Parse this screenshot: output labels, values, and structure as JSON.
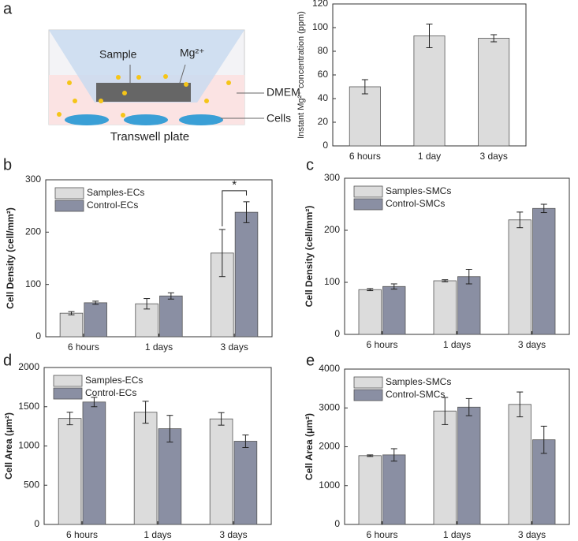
{
  "schematic": {
    "panel_label": "a",
    "sample": "Sample",
    "ion": "Mg²⁺",
    "medium": "DMEM",
    "cells": "Cells",
    "caption": "Transwell plate"
  },
  "chart_data": [
    {
      "type": "bar",
      "y_label": "Instant Mg²⁺ concentration (ppm)",
      "categories": [
        "6 hours",
        "1 day",
        "3 days"
      ],
      "series": [
        {
          "name": null,
          "color": "#dcdcdc",
          "values": [
            50,
            93,
            91
          ],
          "errors": [
            6,
            10,
            3
          ]
        }
      ],
      "ylim": [
        0,
        120
      ],
      "yticks": [
        0,
        20,
        40,
        60,
        80,
        100,
        120
      ]
    },
    {
      "type": "bar",
      "panel_label": "b",
      "y_label": "Cell Density (cell/mm²)",
      "categories": [
        "6 hours",
        "1 days",
        "3 days"
      ],
      "series": [
        {
          "name": "Samples-ECs",
          "color": "#dcdcdc",
          "values": [
            45,
            63,
            160
          ],
          "errors": [
            3,
            10,
            45
          ]
        },
        {
          "name": "Control-ECs",
          "color": "#8a8fa3",
          "values": [
            65,
            78,
            238
          ],
          "errors": [
            3,
            6,
            20
          ]
        }
      ],
      "ylim": [
        0,
        300
      ],
      "yticks": [
        0,
        100,
        200,
        300
      ],
      "legend": "upper left",
      "annotations": [
        {
          "text": "*",
          "category": 2
        }
      ]
    },
    {
      "type": "bar",
      "panel_label": "c",
      "y_label": "Cell Density (cell/mm²)",
      "categories": [
        "6 hours",
        "1 days",
        "3 days"
      ],
      "series": [
        {
          "name": "Samples-SMCs",
          "color": "#dcdcdc",
          "values": [
            86,
            103,
            220
          ],
          "errors": [
            2,
            2,
            15
          ]
        },
        {
          "name": "Control-SMCs",
          "color": "#8a8fa3",
          "values": [
            92,
            111,
            242
          ],
          "errors": [
            5,
            14,
            8
          ]
        }
      ],
      "ylim": [
        0,
        300
      ],
      "yticks": [
        0,
        100,
        200,
        300
      ],
      "legend": "upper left"
    },
    {
      "type": "bar",
      "panel_label": "d",
      "y_label": "Cell Area (μm²)",
      "categories": [
        "6 hours",
        "1 days",
        "3 days"
      ],
      "series": [
        {
          "name": "Samples-ECs",
          "color": "#dcdcdc",
          "values": [
            1350,
            1430,
            1345
          ],
          "errors": [
            80,
            140,
            80
          ]
        },
        {
          "name": "Control-ECs",
          "color": "#8a8fa3",
          "values": [
            1560,
            1220,
            1060
          ],
          "errors": [
            60,
            170,
            80
          ]
        }
      ],
      "ylim": [
        0,
        2000
      ],
      "yticks": [
        0,
        500,
        1000,
        1500,
        2000
      ],
      "legend": "upper left"
    },
    {
      "type": "bar",
      "panel_label": "e",
      "y_label": "Cell Area (μm²)",
      "categories": [
        "6 hours",
        "1 days",
        "3 days"
      ],
      "series": [
        {
          "name": "Samples-SMCs",
          "color": "#dcdcdc",
          "values": [
            1770,
            2920,
            3090
          ],
          "errors": [
            20,
            350,
            320
          ]
        },
        {
          "name": "Control-SMCs",
          "color": "#8a8fa3",
          "values": [
            1790,
            3020,
            2180
          ],
          "errors": [
            160,
            220,
            350
          ]
        }
      ],
      "ylim": [
        0,
        4000
      ],
      "yticks": [
        0,
        1000,
        2000,
        3000,
        4000
      ],
      "legend": "upper left"
    }
  ]
}
